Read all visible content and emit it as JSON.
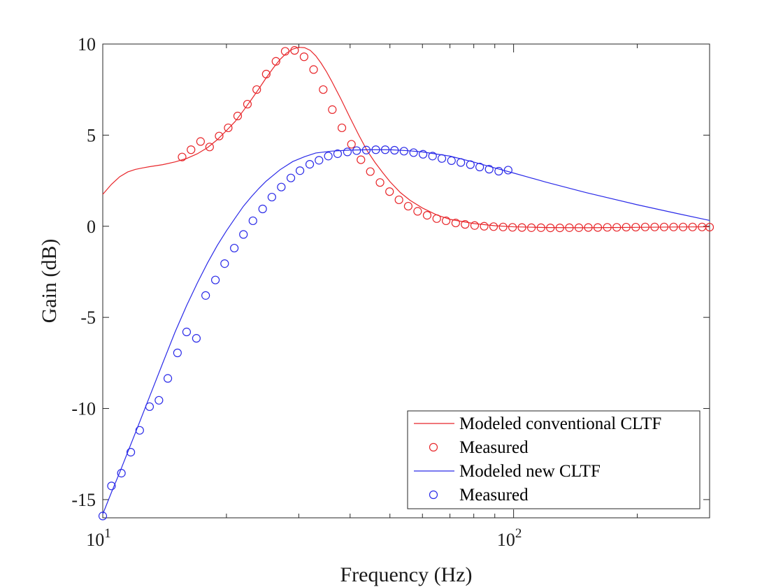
{
  "chart_data": {
    "type": "line",
    "xscale": "log",
    "xlabel": "Frequency (Hz)",
    "ylabel": "Gain (dB)",
    "xlim": [
      10,
      300
    ],
    "ylim": [
      -16,
      10
    ],
    "xticks": [
      {
        "value": 10,
        "label_base": "10",
        "label_exp": "1"
      },
      {
        "value": 100,
        "label_base": "10",
        "label_exp": "2"
      }
    ],
    "yticks": [
      {
        "value": 10,
        "label": "10"
      },
      {
        "value": 5,
        "label": "5"
      },
      {
        "value": 0,
        "label": "0"
      },
      {
        "value": -5,
        "label": "-5"
      },
      {
        "value": -10,
        "label": "-10"
      },
      {
        "value": -15,
        "label": "-15"
      }
    ],
    "grid": false,
    "legend_position": "bottom-right",
    "series": [
      {
        "name": "Modeled conventional CLTF",
        "style": "line",
        "color": "#e8262a",
        "points": [
          [
            10,
            1.75
          ],
          [
            10.5,
            2.3
          ],
          [
            11,
            2.72
          ],
          [
            11.5,
            2.98
          ],
          [
            12,
            3.12
          ],
          [
            12.5,
            3.2
          ],
          [
            13,
            3.27
          ],
          [
            14,
            3.38
          ],
          [
            15,
            3.53
          ],
          [
            16,
            3.72
          ],
          [
            17,
            3.98
          ],
          [
            18,
            4.32
          ],
          [
            19,
            4.75
          ],
          [
            20,
            5.25
          ],
          [
            21,
            5.75
          ],
          [
            22,
            6.35
          ],
          [
            23,
            6.95
          ],
          [
            24,
            7.55
          ],
          [
            25,
            8.15
          ],
          [
            26,
            8.68
          ],
          [
            27,
            9.15
          ],
          [
            28,
            9.5
          ],
          [
            29,
            9.72
          ],
          [
            30,
            9.82
          ],
          [
            31,
            9.8
          ],
          [
            32,
            9.65
          ],
          [
            33,
            9.35
          ],
          [
            34,
            8.95
          ],
          [
            35,
            8.5
          ],
          [
            36,
            8.0
          ],
          [
            38,
            6.98
          ],
          [
            40,
            5.95
          ],
          [
            42,
            5.0
          ],
          [
            44,
            4.15
          ],
          [
            46,
            3.5
          ],
          [
            48,
            2.95
          ],
          [
            50,
            2.45
          ],
          [
            53,
            1.85
          ],
          [
            56,
            1.42
          ],
          [
            60,
            1.0
          ],
          [
            65,
            0.62
          ],
          [
            70,
            0.38
          ],
          [
            80,
            0.15
          ],
          [
            90,
            0.03
          ],
          [
            100,
            -0.03
          ],
          [
            120,
            -0.07
          ],
          [
            150,
            -0.08
          ],
          [
            200,
            -0.06
          ],
          [
            250,
            -0.04
          ],
          [
            300,
            -0.03
          ]
        ]
      },
      {
        "name": "Measured",
        "style": "marker",
        "color": "#e8262a",
        "points": [
          [
            15.6,
            3.8
          ],
          [
            16.4,
            4.2
          ],
          [
            17.3,
            4.65
          ],
          [
            18.2,
            4.35
          ],
          [
            19.2,
            4.95
          ],
          [
            20.2,
            5.4
          ],
          [
            21.3,
            6.05
          ],
          [
            22.5,
            6.7
          ],
          [
            23.7,
            7.5
          ],
          [
            25,
            8.35
          ],
          [
            26.4,
            9.05
          ],
          [
            27.8,
            9.6
          ],
          [
            29.3,
            9.65
          ],
          [
            30.9,
            9.3
          ],
          [
            32.6,
            8.6
          ],
          [
            34.4,
            7.5
          ],
          [
            36.2,
            6.4
          ],
          [
            38.2,
            5.4
          ],
          [
            40.3,
            4.5
          ],
          [
            42.5,
            3.65
          ],
          [
            44.8,
            3.0
          ],
          [
            47.3,
            2.4
          ],
          [
            49.9,
            1.9
          ],
          [
            52.6,
            1.45
          ],
          [
            55.4,
            1.1
          ],
          [
            58.4,
            0.82
          ],
          [
            61.6,
            0.6
          ],
          [
            65,
            0.42
          ],
          [
            68.5,
            0.3
          ],
          [
            72.3,
            0.18
          ],
          [
            76.2,
            0.1
          ],
          [
            80.4,
            0.04
          ],
          [
            84.8,
            0.0
          ],
          [
            89.4,
            -0.02
          ],
          [
            94.3,
            -0.04
          ],
          [
            99.4,
            -0.06
          ],
          [
            104.8,
            -0.07
          ],
          [
            110.5,
            -0.08
          ],
          [
            116.6,
            -0.08
          ],
          [
            122.9,
            -0.09
          ],
          [
            129.6,
            -0.09
          ],
          [
            136.7,
            -0.08
          ],
          [
            144.2,
            -0.08
          ],
          [
            152,
            -0.07
          ],
          [
            160.3,
            -0.07
          ],
          [
            169.1,
            -0.06
          ],
          [
            178.3,
            -0.06
          ],
          [
            188,
            -0.05
          ],
          [
            198.3,
            -0.05
          ],
          [
            209.1,
            -0.04
          ],
          [
            220.5,
            -0.04
          ],
          [
            232.5,
            -0.04
          ],
          [
            245.2,
            -0.04
          ],
          [
            258.6,
            -0.04
          ],
          [
            272.7,
            -0.04
          ],
          [
            287.6,
            -0.04
          ],
          [
            300,
            -0.05
          ]
        ]
      },
      {
        "name": "Modeled new CLTF",
        "style": "line",
        "color": "#2a2ae8",
        "points": [
          [
            10,
            -15.8
          ],
          [
            10.5,
            -14.6
          ],
          [
            11,
            -13.5
          ],
          [
            11.5,
            -12.4
          ],
          [
            12,
            -11.35
          ],
          [
            13,
            -9.35
          ],
          [
            14,
            -7.5
          ],
          [
            15,
            -5.8
          ],
          [
            16,
            -4.35
          ],
          [
            17,
            -3.1
          ],
          [
            18,
            -2.0
          ],
          [
            19,
            -1.05
          ],
          [
            20,
            -0.25
          ],
          [
            21,
            0.45
          ],
          [
            22,
            1.1
          ],
          [
            23,
            1.62
          ],
          [
            24,
            2.08
          ],
          [
            25,
            2.48
          ],
          [
            27,
            3.1
          ],
          [
            29,
            3.55
          ],
          [
            31,
            3.82
          ],
          [
            33,
            4.02
          ],
          [
            36,
            4.12
          ],
          [
            40,
            4.18
          ],
          [
            45,
            4.2
          ],
          [
            50,
            4.2
          ],
          [
            55,
            4.15
          ],
          [
            60,
            4.08
          ],
          [
            70,
            3.85
          ],
          [
            80,
            3.52
          ],
          [
            90,
            3.2
          ],
          [
            100,
            2.92
          ],
          [
            120,
            2.42
          ],
          [
            150,
            1.85
          ],
          [
            200,
            1.18
          ],
          [
            250,
            0.7
          ],
          [
            300,
            0.32
          ]
        ]
      },
      {
        "name": "Measured",
        "style": "marker",
        "color": "#2a2ae8",
        "points": [
          [
            10,
            -15.9
          ],
          [
            10.5,
            -14.25
          ],
          [
            11.1,
            -13.55
          ],
          [
            11.7,
            -12.4
          ],
          [
            12.3,
            -11.2
          ],
          [
            13,
            -9.9
          ],
          [
            13.7,
            -9.55
          ],
          [
            14.4,
            -8.35
          ],
          [
            15.2,
            -6.95
          ],
          [
            16,
            -5.8
          ],
          [
            16.9,
            -6.15
          ],
          [
            17.8,
            -3.8
          ],
          [
            18.8,
            -2.95
          ],
          [
            19.8,
            -2.05
          ],
          [
            20.9,
            -1.2
          ],
          [
            22,
            -0.45
          ],
          [
            23.2,
            0.3
          ],
          [
            24.5,
            0.95
          ],
          [
            25.8,
            1.6
          ],
          [
            27.2,
            2.15
          ],
          [
            28.7,
            2.65
          ],
          [
            30.2,
            3.05
          ],
          [
            31.9,
            3.4
          ],
          [
            33.6,
            3.62
          ],
          [
            35.4,
            3.85
          ],
          [
            37.3,
            3.98
          ],
          [
            39.4,
            4.08
          ],
          [
            41.5,
            4.15
          ],
          [
            43.8,
            4.18
          ],
          [
            46.2,
            4.2
          ],
          [
            48.7,
            4.2
          ],
          [
            51.3,
            4.17
          ],
          [
            54.1,
            4.12
          ],
          [
            57.1,
            4.04
          ],
          [
            60.2,
            3.95
          ],
          [
            63.5,
            3.85
          ],
          [
            66.9,
            3.72
          ],
          [
            70.6,
            3.6
          ],
          [
            74.4,
            3.5
          ],
          [
            78.5,
            3.38
          ],
          [
            82.7,
            3.25
          ],
          [
            87.2,
            3.13
          ],
          [
            92,
            3.02
          ],
          [
            97,
            3.08
          ]
        ]
      }
    ]
  }
}
